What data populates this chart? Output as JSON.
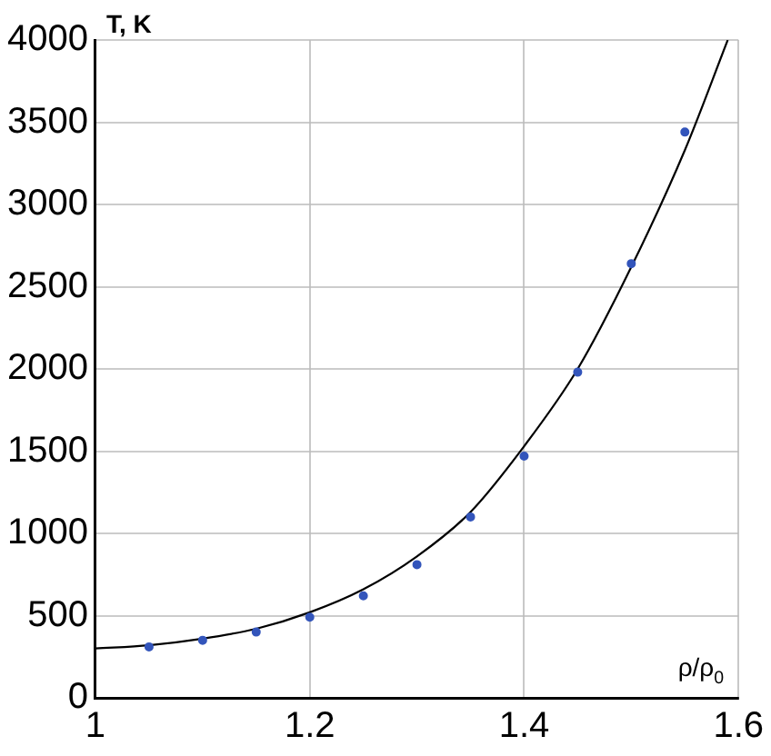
{
  "chart_data": {
    "type": "scatter",
    "xlabel": "ρ/ρ$_{0}$",
    "ylabel": "T, K",
    "xlim": [
      1,
      1.6
    ],
    "xticks": [
      1,
      1.2,
      1.4,
      1.6
    ],
    "ylim": [
      0,
      4000
    ],
    "yticks": [
      0,
      500,
      1000,
      1500,
      2000,
      2500,
      3000,
      3500,
      4000
    ],
    "grid": true,
    "legend": false,
    "series": [
      {
        "type": "scatter",
        "marker": "circle",
        "color": "#3355bb",
        "x": [
          1.05,
          1.1,
          1.15,
          1.2,
          1.25,
          1.3,
          1.35,
          1.4,
          1.45,
          1.5,
          1.55
        ],
        "values": [
          310,
          350,
          400,
          490,
          620,
          810,
          1100,
          1470,
          1980,
          2640,
          3440
        ]
      },
      {
        "type": "line",
        "marker": "none",
        "color": "#000000",
        "x": [
          1,
          1.05,
          1.1,
          1.15,
          1.2,
          1.25,
          1.3,
          1.35,
          1.4,
          1.45,
          1.5,
          1.55,
          1.59
        ],
        "values": [
          300,
          320,
          360,
          420,
          520,
          660,
          860,
          1130,
          1530,
          2000,
          2620,
          3330,
          4000
        ]
      }
    ]
  }
}
